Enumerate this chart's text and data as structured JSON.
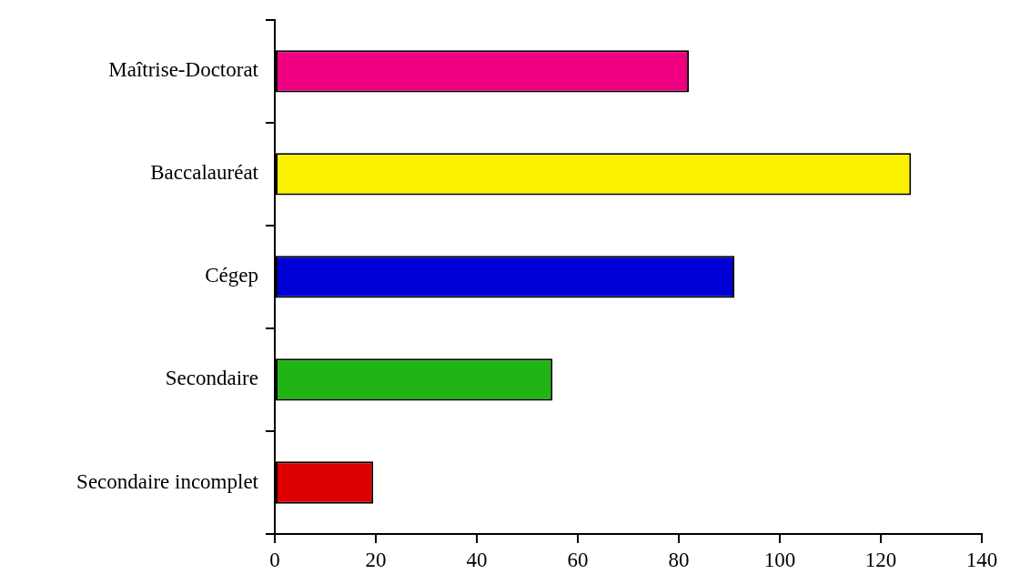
{
  "chart_data": {
    "type": "bar",
    "orientation": "horizontal",
    "categories": [
      "Maîtrise-Doctorat",
      "Baccalauréat",
      "Cégep",
      "Secondaire",
      "Secondaire incomplet"
    ],
    "values": [
      82,
      126,
      91,
      55,
      19.5
    ],
    "colors": [
      "#f00080",
      "#fcf200",
      "#0000d6",
      "#20b414",
      "#de0000"
    ],
    "xlim": [
      0,
      140
    ],
    "xticks": [
      0,
      20,
      40,
      60,
      80,
      100,
      120,
      140
    ],
    "grid": false,
    "legend": false
  }
}
